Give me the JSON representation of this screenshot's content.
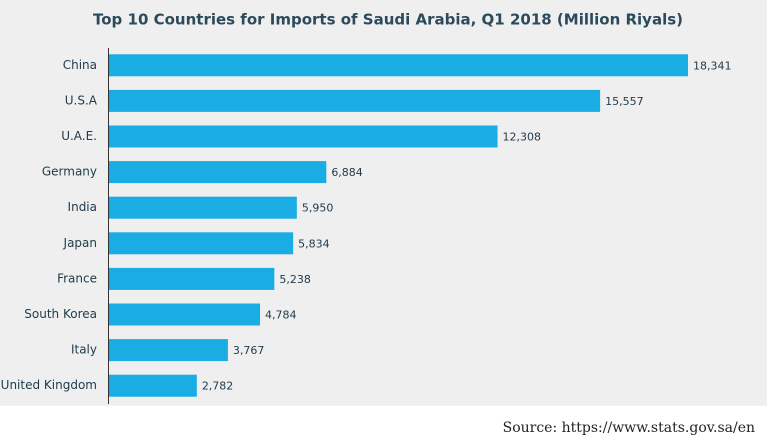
{
  "chart_data": {
    "type": "bar",
    "orientation": "horizontal",
    "title": "Top 10 Countries for Imports of Saudi Arabia, Q1 2018 (Million Riyals)",
    "categories": [
      "China",
      "U.S.A",
      "U.A.E.",
      "Germany",
      "India",
      "Japan",
      "France",
      "South Korea",
      "Italy",
      "United Kingdom"
    ],
    "values": [
      18341,
      15557,
      12308,
      6884,
      5950,
      5834,
      5238,
      4784,
      3767,
      2782
    ],
    "value_labels": [
      "18,341",
      "15,557",
      "12,308",
      "6,884",
      "5,950",
      "5,834",
      "5,238",
      "4,784",
      "3,767",
      "2,782"
    ],
    "color": "#19ade3",
    "source": "Source: https://www.stats.gov.sa/en"
  }
}
